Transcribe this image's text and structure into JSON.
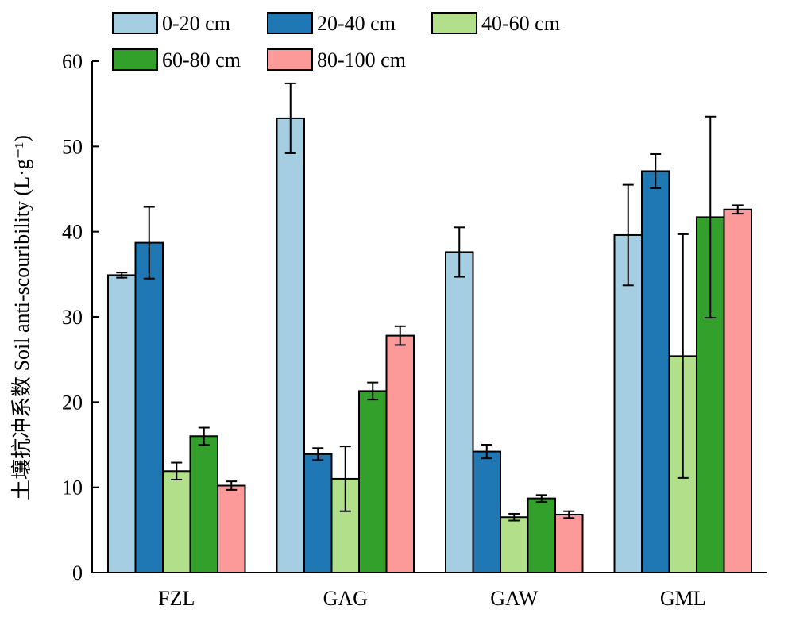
{
  "chart_data": {
    "type": "bar",
    "categories": [
      "FZL",
      "GAG",
      "GAW",
      "GML"
    ],
    "ylabel": "土壤抗冲系数 Soil anti-scouribility (L·g⁻¹)",
    "ylim": [
      0,
      60
    ],
    "yticks": [
      0,
      10,
      20,
      30,
      40,
      50,
      60
    ],
    "grid": false,
    "legend_position": "top",
    "series": [
      {
        "name": "0-20 cm",
        "color": "#a6cee3",
        "values": [
          34.9,
          53.3,
          37.6,
          39.6
        ],
        "errors": [
          0.3,
          4.1,
          2.9,
          5.9
        ]
      },
      {
        "name": "20-40 cm",
        "color": "#1f78b4",
        "values": [
          38.7,
          13.9,
          14.2,
          47.1
        ],
        "errors": [
          4.2,
          0.7,
          0.8,
          2.0
        ]
      },
      {
        "name": "40-60 cm",
        "color": "#b2df8a",
        "values": [
          11.9,
          11.0,
          6.5,
          25.4
        ],
        "errors": [
          1.0,
          3.8,
          0.4,
          14.3
        ]
      },
      {
        "name": "60-80 cm",
        "color": "#33a02c",
        "values": [
          16.0,
          21.3,
          8.7,
          41.7
        ],
        "errors": [
          1.0,
          1.0,
          0.4,
          11.8
        ]
      },
      {
        "name": "80-100 cm",
        "color": "#fb9a99",
        "values": [
          10.2,
          27.8,
          6.8,
          42.6
        ],
        "errors": [
          0.5,
          1.1,
          0.4,
          0.5
        ]
      }
    ]
  }
}
